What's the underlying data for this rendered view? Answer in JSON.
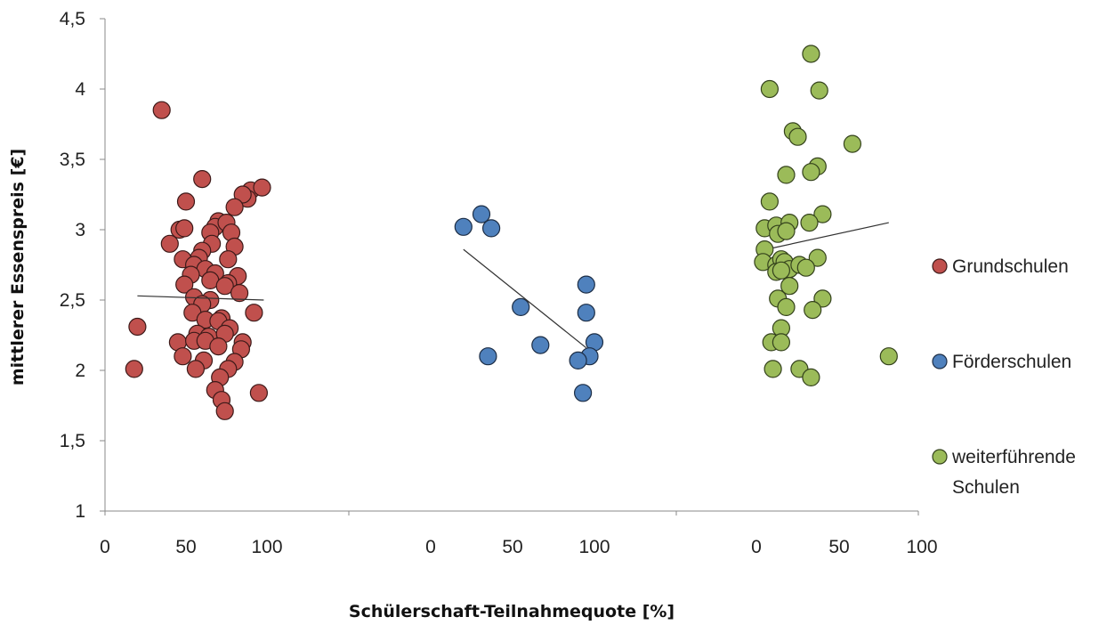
{
  "chart_data": {
    "type": "scatter",
    "ylabel": "mittlerer Essenspreis [€]",
    "xlabel": "Schülerschaft-Teilnahmequote [%]",
    "ylim": [
      1,
      4.5
    ],
    "y_ticks": [
      "1",
      "1,5",
      "2",
      "2,5",
      "3",
      "3,5",
      "4",
      "4,5"
    ],
    "x_ticks": [
      "0",
      "50",
      "100"
    ],
    "xlim_per_panel": [
      0,
      100
    ],
    "grid": false,
    "legend_position": "right",
    "series": [
      {
        "name": "Grundschulen",
        "color": "#c0504d",
        "stroke": "#3d1a19",
        "trendline": [
          [
            20,
            2.53
          ],
          [
            98,
            2.5
          ]
        ],
        "points": [
          [
            35,
            3.85
          ],
          [
            60,
            3.36
          ],
          [
            50,
            3.2
          ],
          [
            90,
            3.28
          ],
          [
            97,
            3.3
          ],
          [
            88,
            3.22
          ],
          [
            85,
            3.25
          ],
          [
            80,
            3.16
          ],
          [
            70,
            3.06
          ],
          [
            68,
            3.02
          ],
          [
            75,
            3.05
          ],
          [
            78,
            2.98
          ],
          [
            46,
            3.0
          ],
          [
            49,
            3.01
          ],
          [
            65,
            2.98
          ],
          [
            40,
            2.9
          ],
          [
            66,
            2.9
          ],
          [
            80,
            2.88
          ],
          [
            60,
            2.85
          ],
          [
            58,
            2.8
          ],
          [
            48,
            2.79
          ],
          [
            76,
            2.79
          ],
          [
            55,
            2.75
          ],
          [
            62,
            2.72
          ],
          [
            53,
            2.68
          ],
          [
            68,
            2.69
          ],
          [
            82,
            2.67
          ],
          [
            65,
            2.64
          ],
          [
            49,
            2.61
          ],
          [
            76,
            2.62
          ],
          [
            74,
            2.6
          ],
          [
            83,
            2.55
          ],
          [
            55,
            2.52
          ],
          [
            65,
            2.5
          ],
          [
            60,
            2.47
          ],
          [
            54,
            2.41
          ],
          [
            92,
            2.41
          ],
          [
            62,
            2.36
          ],
          [
            72,
            2.37
          ],
          [
            70,
            2.35
          ],
          [
            77,
            2.3
          ],
          [
            57,
            2.26
          ],
          [
            64,
            2.24
          ],
          [
            74,
            2.26
          ],
          [
            45,
            2.2
          ],
          [
            55,
            2.21
          ],
          [
            62,
            2.21
          ],
          [
            85,
            2.2
          ],
          [
            70,
            2.17
          ],
          [
            84,
            2.15
          ],
          [
            48,
            2.1
          ],
          [
            61,
            2.07
          ],
          [
            80,
            2.06
          ],
          [
            56,
            2.01
          ],
          [
            76,
            2.01
          ],
          [
            18,
            2.01
          ],
          [
            20,
            2.31
          ],
          [
            71,
            1.95
          ],
          [
            68,
            1.86
          ],
          [
            72,
            1.79
          ],
          [
            74,
            1.71
          ],
          [
            95,
            1.84
          ]
        ]
      },
      {
        "name": "Förderschulen",
        "color": "#4f81bd",
        "stroke": "#1c2d45",
        "trendline": [
          [
            20,
            2.86
          ],
          [
            95,
            2.16
          ]
        ],
        "points": [
          [
            20,
            3.02
          ],
          [
            31,
            3.11
          ],
          [
            37,
            3.01
          ],
          [
            55,
            2.45
          ],
          [
            95,
            2.61
          ],
          [
            95,
            2.41
          ],
          [
            100,
            2.2
          ],
          [
            67,
            2.18
          ],
          [
            97,
            2.1
          ],
          [
            90,
            2.07
          ],
          [
            35,
            2.1
          ],
          [
            93,
            1.84
          ]
        ]
      },
      {
        "name": "weiterführende Schulen",
        "color": "#9bbb59",
        "stroke": "#34421c",
        "trendline": [
          [
            10,
            2.87
          ],
          [
            80,
            3.05
          ]
        ],
        "points": [
          [
            33,
            4.25
          ],
          [
            8,
            4.0
          ],
          [
            38,
            3.99
          ],
          [
            22,
            3.7
          ],
          [
            25,
            3.66
          ],
          [
            58,
            3.61
          ],
          [
            37,
            3.45
          ],
          [
            33,
            3.41
          ],
          [
            18,
            3.39
          ],
          [
            8,
            3.2
          ],
          [
            40,
            3.11
          ],
          [
            5,
            3.01
          ],
          [
            12,
            3.03
          ],
          [
            20,
            3.05
          ],
          [
            32,
            3.05
          ],
          [
            13,
            2.97
          ],
          [
            18,
            2.99
          ],
          [
            5,
            2.86
          ],
          [
            4,
            2.77
          ],
          [
            12,
            2.75
          ],
          [
            15,
            2.79
          ],
          [
            17,
            2.77
          ],
          [
            37,
            2.8
          ],
          [
            20,
            2.72
          ],
          [
            26,
            2.75
          ],
          [
            30,
            2.73
          ],
          [
            12,
            2.7
          ],
          [
            15,
            2.71
          ],
          [
            20,
            2.6
          ],
          [
            13,
            2.51
          ],
          [
            40,
            2.51
          ],
          [
            18,
            2.45
          ],
          [
            34,
            2.43
          ],
          [
            15,
            2.3
          ],
          [
            9,
            2.2
          ],
          [
            15,
            2.2
          ],
          [
            80,
            2.1
          ],
          [
            10,
            2.01
          ],
          [
            26,
            2.01
          ],
          [
            33,
            1.95
          ]
        ]
      }
    ]
  }
}
